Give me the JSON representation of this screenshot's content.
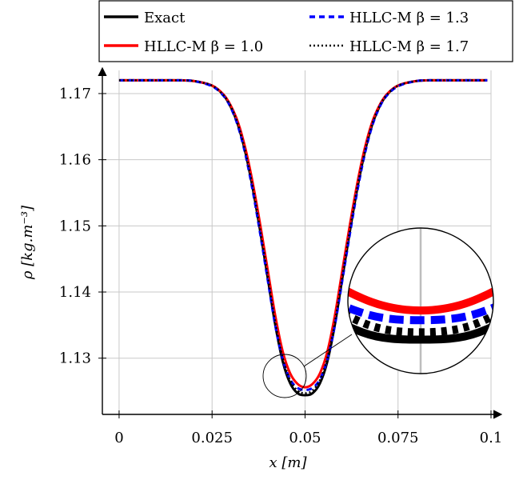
{
  "chart_data": {
    "type": "line",
    "xlabel": "x [m]",
    "ylabel": "ρ [kg.m⁻³]",
    "xlim": [
      -0.0045,
      0.1
    ],
    "ylim": [
      1.1215,
      1.1735
    ],
    "xticks": [
      0,
      0.025,
      0.05,
      0.075,
      0.1
    ],
    "xtick_labels": [
      "0",
      "0.025",
      "0.05",
      "0.075",
      "0.1"
    ],
    "yticks": [
      1.13,
      1.14,
      1.15,
      1.16,
      1.17
    ],
    "ytick_labels": [
      "1.13",
      "1.14",
      "1.15",
      "1.16",
      "1.17"
    ],
    "grid": true,
    "legend_placement": "top, two columns",
    "baseline": 1.172,
    "x": [
      0,
      0.01,
      0.015,
      0.02,
      0.025,
      0.028,
      0.03,
      0.032,
      0.034,
      0.036,
      0.038,
      0.04,
      0.042,
      0.044,
      0.046,
      0.048,
      0.05,
      0.052,
      0.054,
      0.056,
      0.058,
      0.06,
      0.062,
      0.064,
      0.066,
      0.068,
      0.07,
      0.072,
      0.075,
      0.08,
      0.085,
      0.09,
      0.095,
      0.099
    ],
    "series": [
      {
        "name": "Exact",
        "color": "#000000",
        "style": "solid",
        "values": [
          1.172,
          1.172,
          1.172,
          1.1719,
          1.1712,
          1.1698,
          1.168,
          1.1652,
          1.161,
          1.1555,
          1.149,
          1.142,
          1.135,
          1.1295,
          1.1262,
          1.1247,
          1.1244,
          1.1247,
          1.1262,
          1.1295,
          1.135,
          1.142,
          1.149,
          1.1555,
          1.161,
          1.1652,
          1.168,
          1.1698,
          1.1712,
          1.1719,
          1.172,
          1.172,
          1.172,
          1.172
        ]
      },
      {
        "name": "HLLC-M β = 1.0",
        "color": "#ff0000",
        "style": "solid",
        "values": [
          1.172,
          1.172,
          1.172,
          1.1719,
          1.1712,
          1.1699,
          1.1682,
          1.1656,
          1.1616,
          1.1563,
          1.15,
          1.1432,
          1.1364,
          1.131,
          1.1277,
          1.1261,
          1.1256,
          1.1261,
          1.1277,
          1.131,
          1.1364,
          1.1432,
          1.15,
          1.1563,
          1.1616,
          1.1656,
          1.1682,
          1.1699,
          1.1712,
          1.1719,
          1.172,
          1.172,
          1.172,
          1.172
        ]
      },
      {
        "name": "HLLC-M β = 1.3",
        "color": "#0000ff",
        "style": "dashed",
        "values": [
          1.172,
          1.172,
          1.172,
          1.1719,
          1.1711,
          1.1697,
          1.1679,
          1.165,
          1.1607,
          1.1551,
          1.1486,
          1.1417,
          1.1349,
          1.1298,
          1.1268,
          1.1255,
          1.1252,
          1.1255,
          1.1268,
          1.1298,
          1.1349,
          1.1417,
          1.1486,
          1.1551,
          1.1607,
          1.165,
          1.1679,
          1.1697,
          1.1711,
          1.1719,
          1.172,
          1.172,
          1.172,
          1.172
        ]
      },
      {
        "name": "HLLC-M β = 1.7",
        "color": "#000000",
        "style": "dotted",
        "values": [
          1.172,
          1.172,
          1.172,
          1.1719,
          1.1712,
          1.1698,
          1.1681,
          1.1653,
          1.1611,
          1.1557,
          1.1492,
          1.1423,
          1.1354,
          1.13,
          1.1267,
          1.1251,
          1.1247,
          1.1251,
          1.1267,
          1.13,
          1.1354,
          1.1423,
          1.1492,
          1.1557,
          1.1611,
          1.1653,
          1.1681,
          1.1698,
          1.1712,
          1.1719,
          1.172,
          1.172,
          1.172,
          1.172
        ]
      }
    ],
    "inset": {
      "type": "zoom",
      "xlim": [
        0.0475,
        0.0525
      ],
      "ylim": [
        1.1235,
        1.1295
      ],
      "center_x": 0.05,
      "center_y": 1.126
    }
  }
}
